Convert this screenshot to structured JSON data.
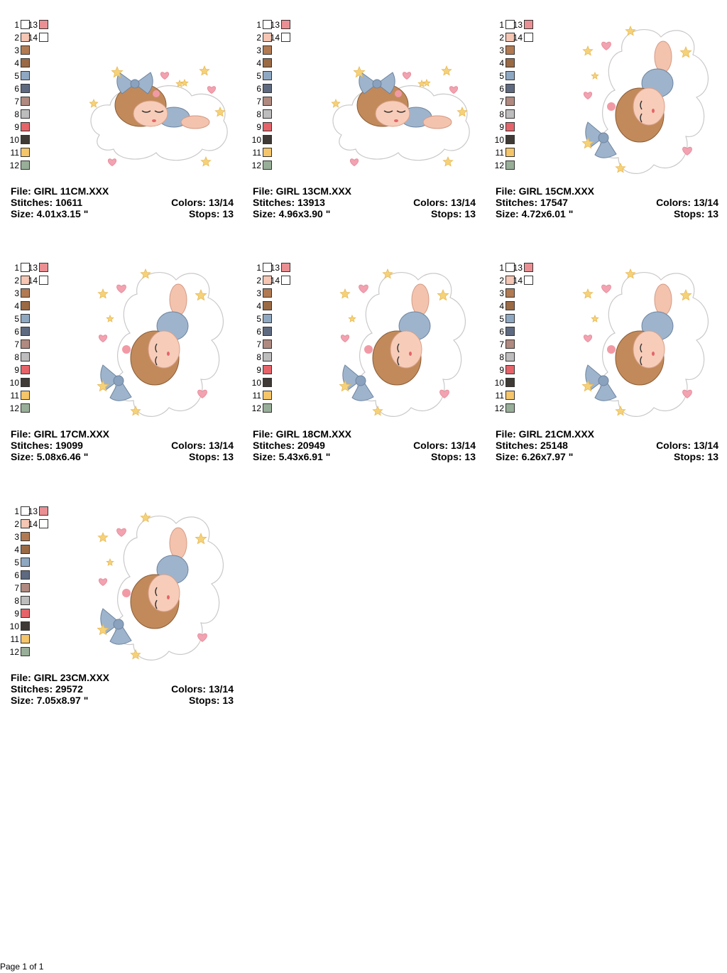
{
  "palette": {
    "colors": [
      {
        "num": "1",
        "hex": "#ffffff"
      },
      {
        "num": "2",
        "hex": "#f5c6b4"
      },
      {
        "num": "3",
        "hex": "#b27a52"
      },
      {
        "num": "4",
        "hex": "#9a6a45"
      },
      {
        "num": "5",
        "hex": "#8fa8c2"
      },
      {
        "num": "6",
        "hex": "#5e6a80"
      },
      {
        "num": "7",
        "hex": "#b08a80"
      },
      {
        "num": "8",
        "hex": "#bdbdbd"
      },
      {
        "num": "9",
        "hex": "#e5646a"
      },
      {
        "num": "10",
        "hex": "#3f3a35"
      },
      {
        "num": "11",
        "hex": "#f5c56a"
      },
      {
        "num": "12",
        "hex": "#98ae98"
      },
      {
        "num": "13",
        "hex": "#ea8f93"
      },
      {
        "num": "14",
        "hex": "#ffffff"
      }
    ]
  },
  "designs": [
    {
      "file": "File: GIRL 11CM.XXX",
      "stitches": "Stitches: 10611",
      "size": "Size: 4.01x3.15 \"",
      "colors": "Colors: 13/14",
      "stops": "Stops: 13"
    },
    {
      "file": "File: GIRL 13CM.XXX",
      "stitches": "Stitches: 13913",
      "size": "Size: 4.96x3.90 \"",
      "colors": "Colors: 13/14",
      "stops": "Stops: 13"
    },
    {
      "file": "File: GIRL 15CM.XXX",
      "stitches": "Stitches: 17547",
      "size": "Size: 4.72x6.01 \"",
      "colors": "Colors: 13/14",
      "stops": "Stops: 13"
    },
    {
      "file": "File: GIRL 17CM.XXX",
      "stitches": "Stitches: 19099",
      "size": "Size: 5.08x6.46 \"",
      "colors": "Colors: 13/14",
      "stops": "Stops: 13"
    },
    {
      "file": "File: GIRL 18CM.XXX",
      "stitches": "Stitches: 20949",
      "size": "Size: 5.43x6.91 \"",
      "colors": "Colors: 13/14",
      "stops": "Stops: 13"
    },
    {
      "file": "File: GIRL 21CM.XXX",
      "stitches": "Stitches: 25148",
      "size": "Size: 6.26x7.97 \"",
      "colors": "Colors: 13/14",
      "stops": "Stops: 13"
    },
    {
      "file": "File: GIRL 23CM.XXX",
      "stitches": "Stitches: 29572",
      "size": "Size: 7.05x8.97 \"",
      "colors": "Colors: 13/14",
      "stops": "Stops: 13"
    }
  ],
  "footer": {
    "page": "Page 1 of 1"
  }
}
